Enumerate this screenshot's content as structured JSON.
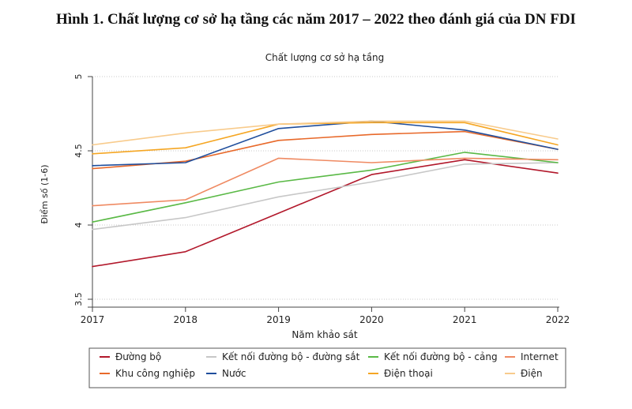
{
  "figure": {
    "title": "Hình 1. Chất lượng cơ sở hạ tầng các năm 2017 – 2022 theo đánh giá của DN FDI"
  },
  "chart_data": {
    "type": "line",
    "title": "Chất lượng cơ sở hạ tầng",
    "xlabel": "Năm khảo sát",
    "ylabel": "Điểm số (1-6)",
    "x": [
      2017,
      2018,
      2019,
      2020,
      2021,
      2022
    ],
    "x_tick_labels": [
      "2017",
      "2018",
      "2019",
      "2020",
      "2021",
      "2022"
    ],
    "ylim": [
      3.5,
      5
    ],
    "y_ticks": [
      3.5,
      4,
      4.5,
      5
    ],
    "y_tick_labels": [
      "3.5",
      "4",
      "4.5",
      "5"
    ],
    "grid": "horizontal dotted",
    "legend_position": "bottom",
    "series": [
      {
        "name": "Đường bộ",
        "color": "#b2182b",
        "values": [
          3.72,
          3.82,
          4.08,
          4.34,
          4.44,
          4.35
        ]
      },
      {
        "name": "Kết nối đường bộ - đường sắt",
        "color": "#c7c7c7",
        "values": [
          3.97,
          4.05,
          4.19,
          4.29,
          4.41,
          4.42
        ]
      },
      {
        "name": "Kết nối đường bộ - cảng",
        "color": "#5ab946",
        "values": [
          4.02,
          4.15,
          4.29,
          4.37,
          4.49,
          4.42
        ]
      },
      {
        "name": "Internet",
        "color": "#ef8a62",
        "values": [
          4.13,
          4.17,
          4.45,
          4.42,
          4.45,
          4.44
        ]
      },
      {
        "name": "Khu công nghiệp",
        "color": "#e8692a",
        "values": [
          4.38,
          4.43,
          4.57,
          4.61,
          4.63,
          4.51
        ]
      },
      {
        "name": "Nước",
        "color": "#1f4e9c",
        "values": [
          4.4,
          4.42,
          4.65,
          4.7,
          4.64,
          4.51
        ]
      },
      {
        "name": "Điện thoại",
        "color": "#f5a623",
        "values": [
          4.48,
          4.52,
          4.68,
          4.69,
          4.69,
          4.54
        ]
      },
      {
        "name": "Điện",
        "color": "#f8cb8c",
        "values": [
          4.54,
          4.62,
          4.68,
          4.7,
          4.7,
          4.58
        ]
      }
    ]
  }
}
